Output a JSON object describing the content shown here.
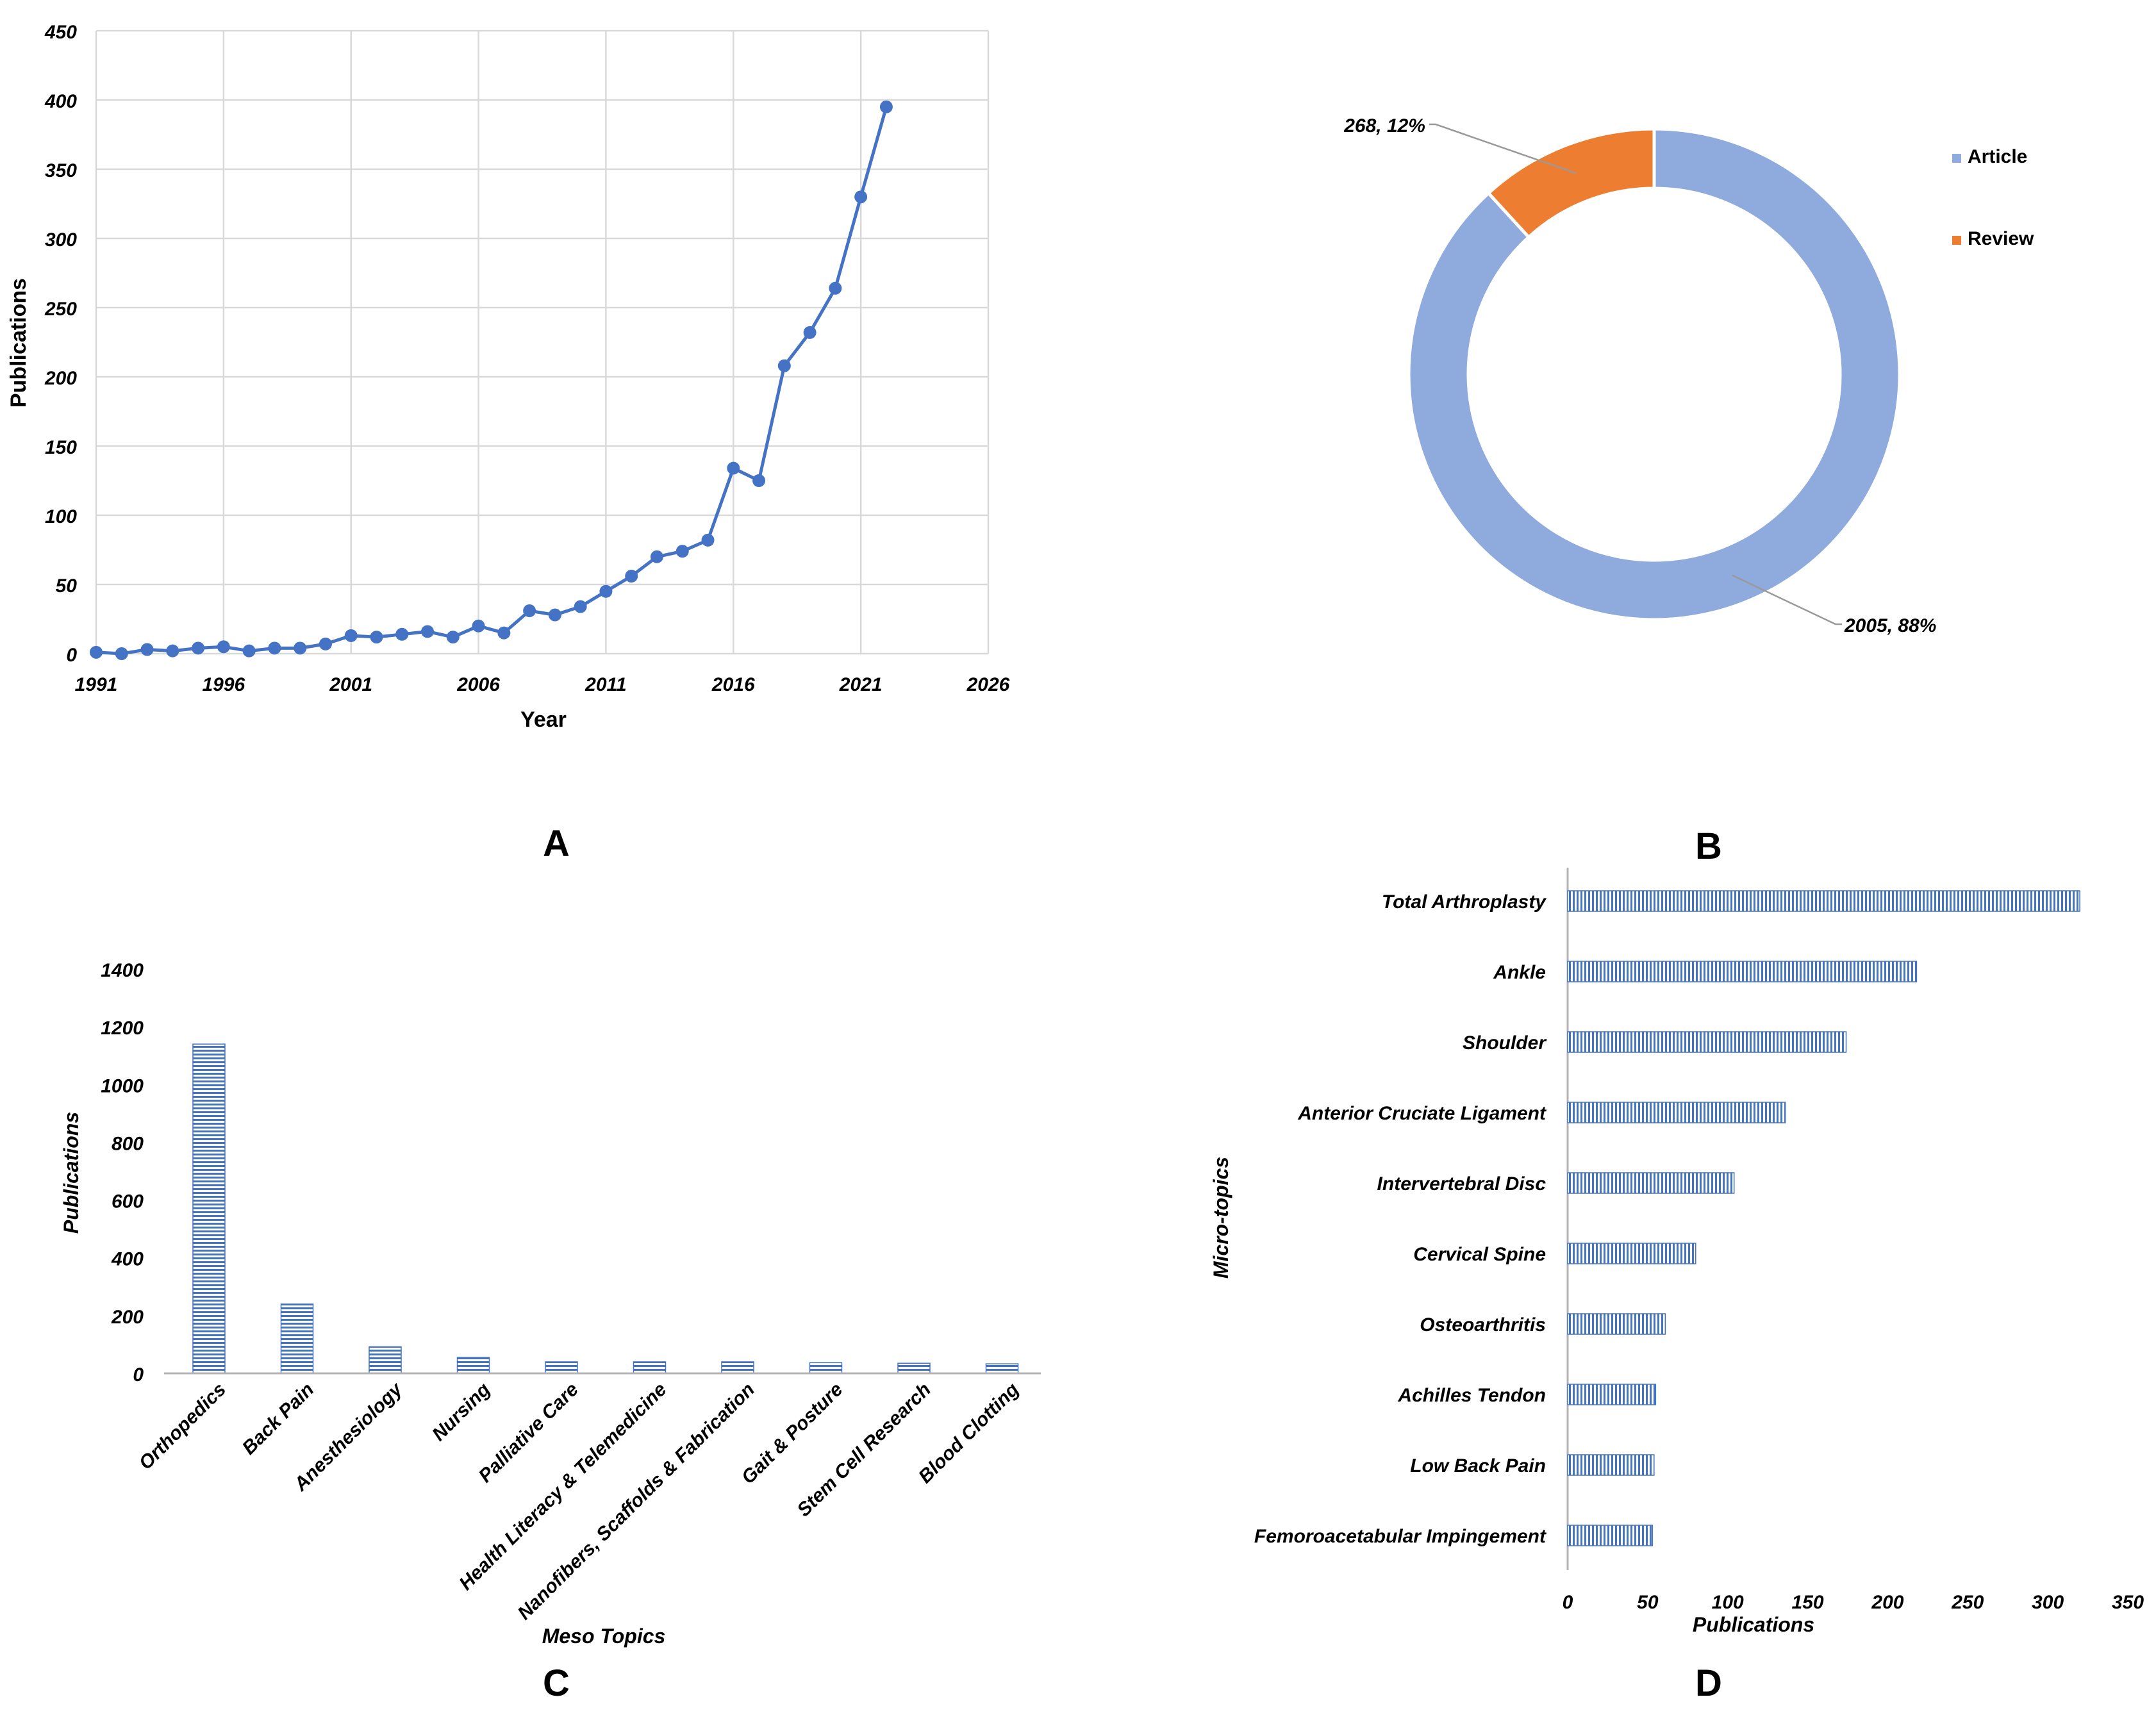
{
  "chart_data": [
    {
      "panel": "A",
      "type": "line",
      "xlabel": "Year",
      "ylabel": "Publications",
      "xlim": [
        1991,
        2026
      ],
      "ylim": [
        0,
        450
      ],
      "xticks": [
        "1991",
        "1996",
        "2001",
        "2006",
        "2011",
        "2016",
        "2021",
        "2026"
      ],
      "yticks": [
        "0",
        "50",
        "100",
        "150",
        "200",
        "250",
        "300",
        "350",
        "400",
        "450"
      ],
      "grid": true,
      "color": "#4472c4",
      "x": [
        1991,
        1992,
        1993,
        1994,
        1995,
        1996,
        1997,
        1998,
        1999,
        2000,
        2001,
        2002,
        2003,
        2004,
        2005,
        2006,
        2007,
        2008,
        2009,
        2010,
        2011,
        2012,
        2013,
        2014,
        2015,
        2016,
        2017,
        2018,
        2019,
        2020,
        2021,
        2022
      ],
      "values": [
        1,
        0,
        3,
        2,
        4,
        5,
        2,
        4,
        4,
        7,
        13,
        12,
        14,
        16,
        12,
        20,
        15,
        31,
        28,
        34,
        45,
        56,
        70,
        74,
        82,
        134,
        125,
        208,
        232,
        264,
        330,
        395
      ]
    },
    {
      "panel": "B",
      "type": "pie",
      "style": "donut",
      "labels": [
        "Article",
        "Review"
      ],
      "values": [
        2005,
        268
      ],
      "percents": [
        "88%",
        "12%"
      ],
      "data_labels": [
        "2005, 88%",
        "268, 12%"
      ],
      "colors": [
        "#8faadc",
        "#ed7d31"
      ],
      "legend": "right"
    },
    {
      "panel": "C",
      "type": "bar",
      "orientation": "vertical",
      "xlabel": "Meso Topics",
      "ylabel": "Publications",
      "ylim": [
        0,
        1400
      ],
      "yticks": [
        "0",
        "200",
        "400",
        "600",
        "800",
        "1000",
        "1200",
        "1400"
      ],
      "categories": [
        "Orthopedics",
        "Back Pain",
        "Anesthesiology",
        "Nursing",
        "Palliative Care",
        "Health Literacy & Telemedicine",
        "Nanofibers, Scaffolds & Fabrication",
        "Gait & Posture",
        "Stem Cell Research",
        "Blood Clotting"
      ],
      "values": [
        1140,
        240,
        92,
        55,
        40,
        40,
        40,
        37,
        35,
        33
      ],
      "color": "#4472c4",
      "pattern": "horizontal-lines"
    },
    {
      "panel": "D",
      "type": "bar",
      "orientation": "horizontal",
      "xlabel": "Publications",
      "ylabel": "Micro-topics",
      "xlim": [
        0,
        350
      ],
      "xticks": [
        "0",
        "50",
        "100",
        "150",
        "200",
        "250",
        "300",
        "350"
      ],
      "categories": [
        "Total Arthroplasty",
        "Ankle",
        "Shoulder",
        "Anterior Cruciate Ligament",
        "Intervertebral Disc",
        "Cervical Spine",
        "Osteoarthritis",
        "Achilles Tendon",
        "Low Back Pain",
        "Femoroacetabular Impingement"
      ],
      "values": [
        320,
        218,
        174,
        136,
        104,
        80,
        61,
        55,
        54,
        53
      ],
      "color": "#4472c4",
      "pattern": "vertical-lines"
    }
  ],
  "panel_labels": {
    "a": "A",
    "b": "B",
    "c": "C",
    "d": "D"
  }
}
